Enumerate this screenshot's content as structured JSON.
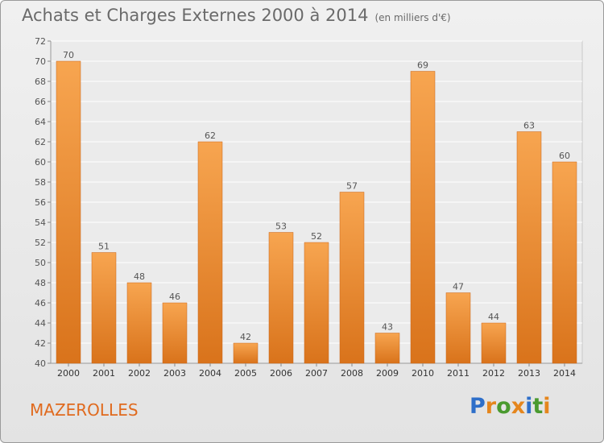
{
  "header": {
    "title": "Achats et Charges Externes 2000 à 2014",
    "subtitle": "(en milliers d'€)"
  },
  "footer": {
    "town": "MAZEROLLES",
    "brand": "Proxiti"
  },
  "colors": {
    "bar_light": "#f7a550",
    "bar_dark": "#d9731b",
    "town": "#e06a1e",
    "text": "#6a6a6a",
    "brand_letters": [
      "#2e6fc9",
      "#e5861d",
      "#4a9a2f",
      "#e5861d",
      "#2e6fc9",
      "#4a9a2f",
      "#e5861d"
    ]
  },
  "chart_data": {
    "type": "bar",
    "title": "Achats et Charges Externes 2000 à 2014",
    "subtitle": "(en milliers d'€)",
    "categories": [
      "2000",
      "2001",
      "2002",
      "2003",
      "2004",
      "2005",
      "2006",
      "2007",
      "2008",
      "2009",
      "2010",
      "2011",
      "2012",
      "2013",
      "2014"
    ],
    "values": [
      70,
      51,
      48,
      46,
      62,
      42,
      53,
      52,
      57,
      43,
      69,
      47,
      44,
      63,
      60
    ],
    "ylim": [
      40,
      72
    ],
    "yticks": [
      40,
      42,
      44,
      46,
      48,
      50,
      52,
      54,
      56,
      58,
      60,
      62,
      64,
      66,
      68,
      70,
      72
    ],
    "grid": true,
    "xlabel": "",
    "ylabel": ""
  }
}
